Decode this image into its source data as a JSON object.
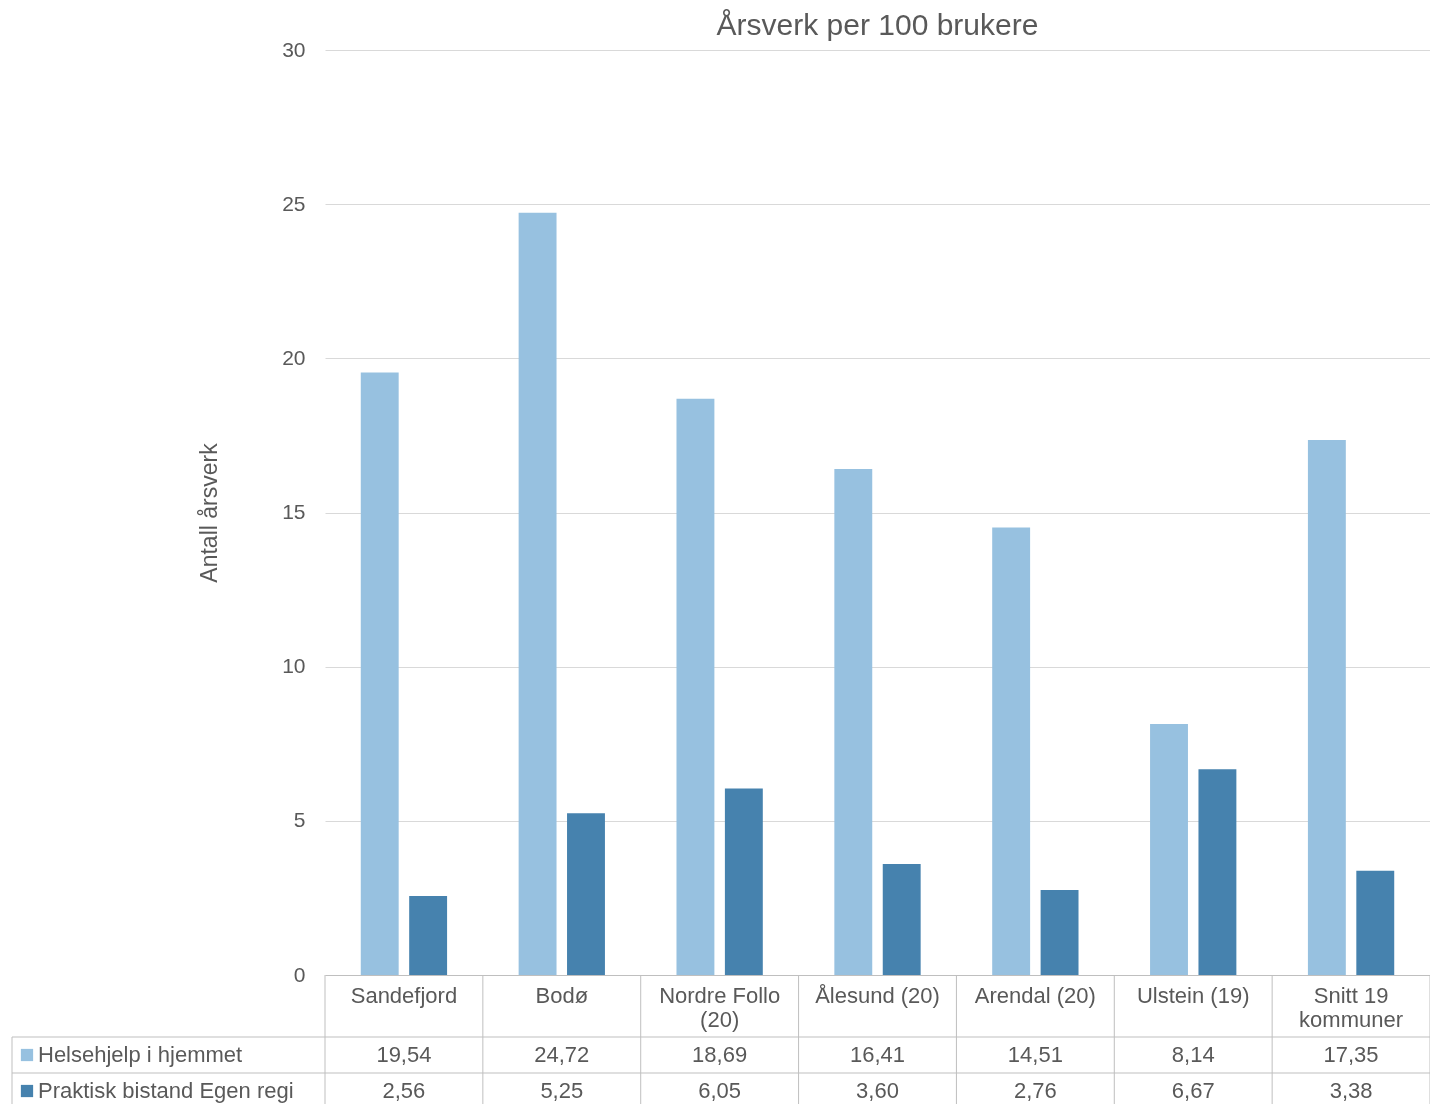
{
  "chart_data": {
    "type": "bar",
    "title": "Årsverk per 100 brukere",
    "ylabel": "Antall årsverk",
    "categories": [
      "Sandefjord",
      "Bodø",
      "Nordre Follo (20)",
      "Ålesund (20)",
      "Arendal (20)",
      "Ulstein (19)",
      "Snitt 19 kommuner"
    ],
    "series": [
      {
        "name": "Helsehjelp i hjemmet",
        "color": "#97c1e0",
        "values": [
          19.54,
          24.72,
          18.69,
          16.41,
          14.51,
          8.14,
          17.35
        ],
        "value_labels": [
          "19,54",
          "24,72",
          "18,69",
          "16,41",
          "14,51",
          "8,14",
          "17,35"
        ]
      },
      {
        "name": "Praktisk bistand Egen regi",
        "color": "#4682ae",
        "values": [
          2.56,
          5.25,
          6.05,
          3.6,
          2.76,
          6.67,
          3.38
        ],
        "value_labels": [
          "2,56",
          "5,25",
          "6,05",
          "3,60",
          "2,76",
          "6,67",
          "3,38"
        ]
      }
    ],
    "ylim": [
      0,
      30
    ],
    "yticks": [
      0,
      5,
      10,
      15,
      20,
      25,
      30
    ],
    "grid": "y",
    "legend": "bottom"
  }
}
